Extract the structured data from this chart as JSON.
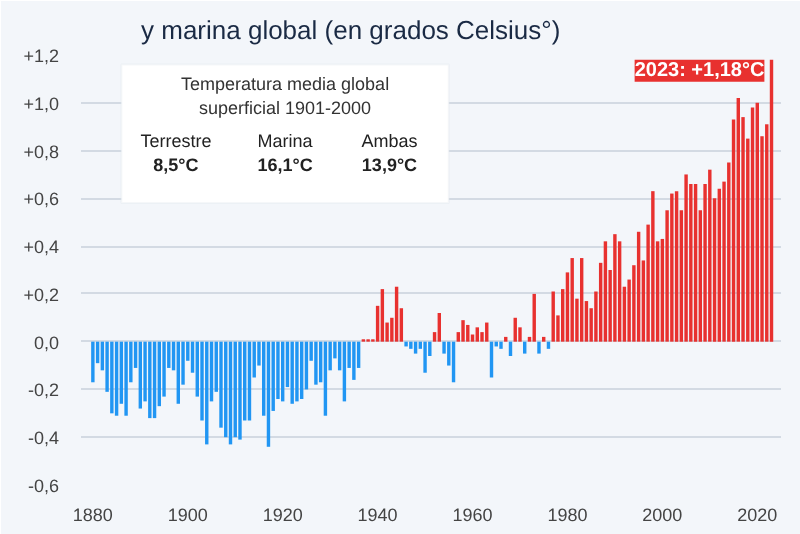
{
  "chart_data": {
    "type": "bar",
    "title": "y marina global (en grados Celsius°)",
    "xlim": [
      1877.5,
      2025
    ],
    "xticks": [
      1880,
      1900,
      1920,
      1940,
      1960,
      1980,
      2000,
      2020
    ],
    "ylim": [
      -0.6,
      1.2
    ],
    "yticks": [
      {
        "value": -0.6,
        "label": "-0,6"
      },
      {
        "value": -0.4,
        "label": "-0,4"
      },
      {
        "value": -0.2,
        "label": "-0,2"
      },
      {
        "value": 0,
        "label": "0,0"
      },
      {
        "value": 0.2,
        "label": "+0,2"
      },
      {
        "value": 0.4,
        "label": "+0,4"
      },
      {
        "value": 0.6,
        "label": "+0,6"
      },
      {
        "value": 0.8,
        "label": "+0,8"
      },
      {
        "value": 1.0,
        "label": "+1,0"
      },
      {
        "value": 1.2,
        "label": "+1,2"
      }
    ],
    "grid": "y",
    "series": [
      {
        "color": "#2196f3",
        "x": [
          1880,
          1881,
          1882,
          1883,
          1884,
          1885,
          1886,
          1887,
          1888,
          1889,
          1890,
          1891,
          1892,
          1893,
          1894,
          1895,
          1896,
          1897,
          1898,
          1899,
          1900,
          1901,
          1902,
          1903,
          1904,
          1905,
          1906,
          1907,
          1908,
          1909,
          1910,
          1911,
          1912,
          1913,
          1914,
          1915,
          1916,
          1917,
          1918,
          1919,
          1920,
          1921,
          1922,
          1923,
          1924,
          1925,
          1926,
          1927,
          1928,
          1929,
          1930,
          1931,
          1932,
          1933,
          1934,
          1935,
          1936,
          1946,
          1947,
          1948,
          1949,
          1950,
          1951,
          1954,
          1955,
          1956,
          1964,
          1965,
          1966,
          1968,
          1971,
          1974,
          1976
        ],
        "values": [
          -0.17,
          -0.09,
          -0.12,
          -0.21,
          -0.3,
          -0.31,
          -0.26,
          -0.31,
          -0.17,
          -0.11,
          -0.28,
          -0.25,
          -0.32,
          -0.32,
          -0.27,
          -0.23,
          -0.11,
          -0.12,
          -0.26,
          -0.18,
          -0.08,
          -0.13,
          -0.23,
          -0.33,
          -0.43,
          -0.25,
          -0.21,
          -0.36,
          -0.4,
          -0.43,
          -0.4,
          -0.41,
          -0.33,
          -0.33,
          -0.15,
          -0.1,
          -0.31,
          -0.44,
          -0.29,
          -0.24,
          -0.25,
          -0.19,
          -0.26,
          -0.25,
          -0.24,
          -0.2,
          -0.08,
          -0.18,
          -0.17,
          -0.31,
          -0.12,
          -0.07,
          -0.12,
          -0.25,
          -0.11,
          -0.16,
          -0.11,
          -0.02,
          -0.03,
          -0.05,
          -0.03,
          -0.13,
          -0.06,
          -0.05,
          -0.1,
          -0.17,
          -0.15,
          -0.02,
          -0.03,
          -0.06,
          -0.05,
          -0.05,
          -0.03
        ]
      },
      {
        "color": "#e8312f",
        "x": [
          1937,
          1938,
          1939,
          1940,
          1941,
          1942,
          1943,
          1944,
          1945,
          1952,
          1953,
          1957,
          1958,
          1959,
          1960,
          1961,
          1962,
          1963,
          1967,
          1969,
          1970,
          1972,
          1973,
          1975,
          1977,
          1978,
          1979,
          1980,
          1981,
          1982,
          1983,
          1984,
          1985,
          1986,
          1987,
          1988,
          1989,
          1990,
          1991,
          1992,
          1993,
          1994,
          1995,
          1996,
          1997,
          1998,
          1999,
          2000,
          2001,
          2002,
          2003,
          2004,
          2005,
          2006,
          2007,
          2008,
          2009,
          2010,
          2011,
          2012,
          2013,
          2014,
          2015,
          2016,
          2017,
          2018,
          2019,
          2020,
          2021,
          2022,
          2023
        ],
        "values": [
          0.01,
          0.01,
          0.01,
          0.15,
          0.22,
          0.08,
          0.1,
          0.23,
          0.14,
          0.04,
          0.12,
          0.04,
          0.09,
          0.07,
          0.03,
          0.06,
          0.04,
          0.08,
          0.02,
          0.1,
          0.06,
          0.02,
          0.2,
          0.02,
          0.21,
          0.11,
          0.22,
          0.29,
          0.35,
          0.18,
          0.35,
          0.17,
          0.14,
          0.21,
          0.33,
          0.42,
          0.3,
          0.45,
          0.42,
          0.23,
          0.26,
          0.32,
          0.46,
          0.34,
          0.49,
          0.63,
          0.42,
          0.43,
          0.55,
          0.62,
          0.63,
          0.55,
          0.7,
          0.66,
          0.66,
          0.55,
          0.66,
          0.72,
          0.6,
          0.64,
          0.67,
          0.75,
          0.93,
          1.02,
          0.94,
          0.85,
          0.98,
          1.0,
          0.86,
          0.91,
          1.18
        ]
      }
    ],
    "annotations": [
      "Temperatura media global superficial 1901-2000",
      "Terrestre",
      "8,5°C",
      "Marina",
      "16,1°C",
      "Ambas",
      "13,9°C",
      {
        "text": "2023: +1,18°C",
        "x": 2023,
        "y": 1.18
      }
    ]
  }
}
